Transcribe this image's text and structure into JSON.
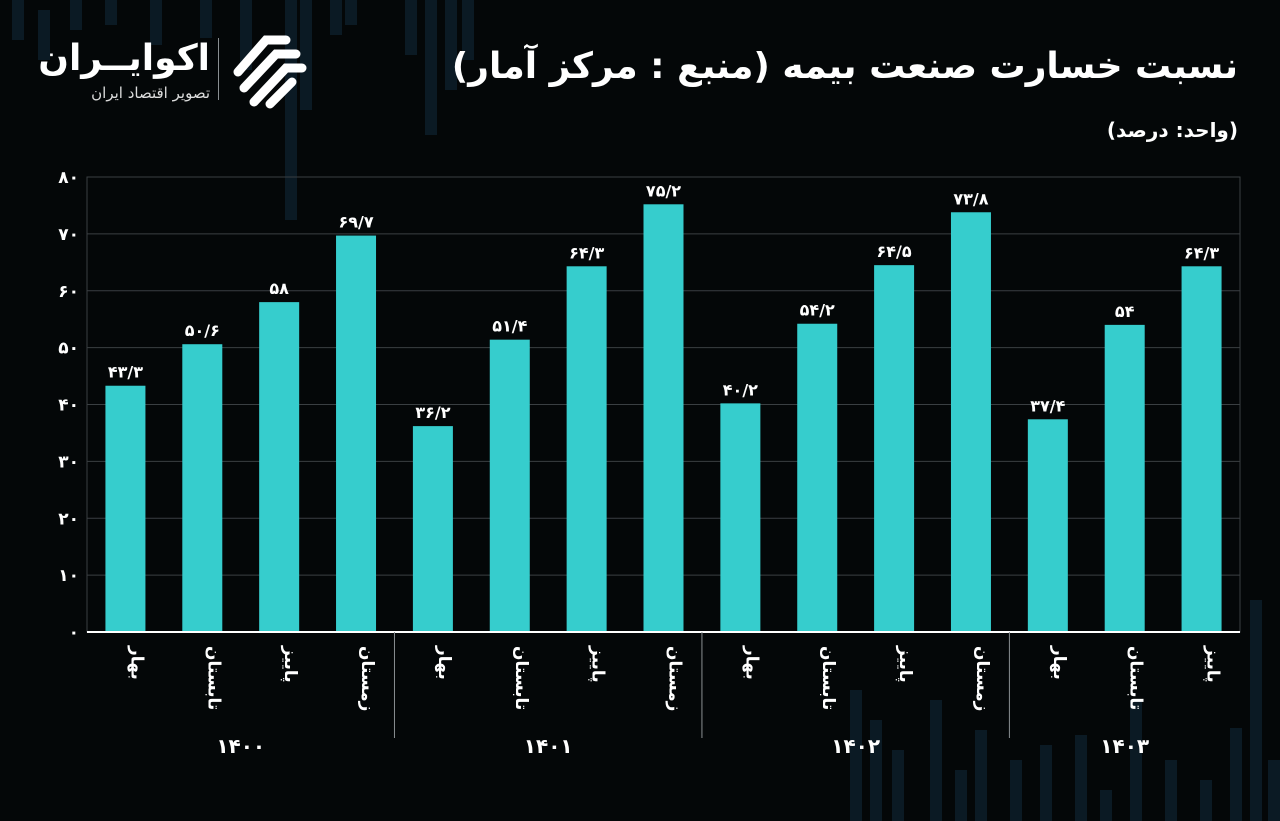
{
  "header": {
    "title": "نسبت خسارت صنعت بیمه (منبع : مرکز آمار)",
    "unit": "(واحد: درصد)"
  },
  "logo": {
    "name": "اکوایــران",
    "tagline": "تصویر اقتصاد ایران",
    "icon": "ekoiran-logo-mark"
  },
  "colors": {
    "background": "#040708",
    "bar": "#36cdcd",
    "grid": "#3a3f42",
    "axis": "#ffffff"
  },
  "chart_data": {
    "type": "bar",
    "title": "نسبت خسارت صنعت بیمه (منبع : مرکز آمار)",
    "ylabel": "(واحد: درصد)",
    "ylim": [
      0,
      80
    ],
    "yticks": [
      0,
      10,
      20,
      30,
      40,
      50,
      60,
      70,
      80
    ],
    "ytick_labels": [
      "۰",
      "۱۰",
      "۲۰",
      "۳۰",
      "۴۰",
      "۵۰",
      "۶۰",
      "۷۰",
      "۸۰"
    ],
    "grid": true,
    "categories": [
      "بهار",
      "تابستان",
      "پاییز",
      "زمستان",
      "بهار",
      "تابستان",
      "پاییز",
      "زمستان",
      "بهار",
      "تابستان",
      "پاییز",
      "زمستان",
      "بهار",
      "تابستان",
      "پاییز"
    ],
    "groups": [
      {
        "label": "۱۴۰۰",
        "count": 4
      },
      {
        "label": "۱۴۰۱",
        "count": 4
      },
      {
        "label": "۱۴۰۲",
        "count": 4
      },
      {
        "label": "۱۴۰۳",
        "count": 3
      }
    ],
    "values": [
      43.3,
      50.6,
      58,
      69.7,
      36.2,
      51.4,
      64.3,
      75.2,
      40.2,
      54.2,
      64.5,
      73.8,
      37.4,
      54,
      64.3
    ],
    "data_labels": [
      "۴۳/۳",
      "۵۰/۶",
      "۵۸",
      "۶۹/۷",
      "۳۶/۲",
      "۵۱/۴",
      "۶۴/۳",
      "۷۵/۲",
      "۴۰/۲",
      "۵۴/۲",
      "۶۴/۵",
      "۷۳/۸",
      "۳۷/۴",
      "۵۴",
      "۶۴/۳"
    ]
  }
}
